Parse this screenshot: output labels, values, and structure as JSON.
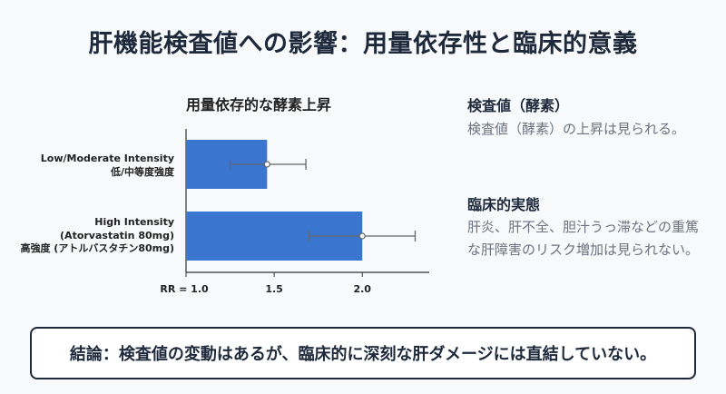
{
  "title": "肝機能検査値への影響：用量依存性と臨床的意義",
  "chart_data": {
    "type": "bar",
    "orientation": "horizontal",
    "title": "用量依存的な酵素上昇",
    "categories": [
      [
        "Low/Moderate Intensity",
        "低/中等度強度"
      ],
      [
        "High Intensity",
        "(Atorvastatin 80mg)",
        "高強度 (アトルバスタチン80mg)"
      ]
    ],
    "values": [
      1.46,
      2.0
    ],
    "error_low": [
      1.25,
      1.7
    ],
    "error_high": [
      1.68,
      2.3
    ],
    "x_ticks": [
      "RR = 1.0",
      "1.5",
      "2.0"
    ],
    "x_tick_values": [
      1.0,
      1.5,
      2.0
    ],
    "xlim": [
      1.0,
      2.38
    ],
    "bar_color": "#3a76d0",
    "errorbar_color": "#666666"
  },
  "side": {
    "heading1": "検査値（酵素）",
    "text1": "検査値（酵素）の上昇は見られる。",
    "heading2": "臨床的実態",
    "text2": "肝炎、肝不全、胆汁うっ滞などの重篤な肝障害のリスク増加は見られない。"
  },
  "conclusion": "結論：検査値の変動はあるが、臨床的に深刻な肝ダメージには直結していない。"
}
